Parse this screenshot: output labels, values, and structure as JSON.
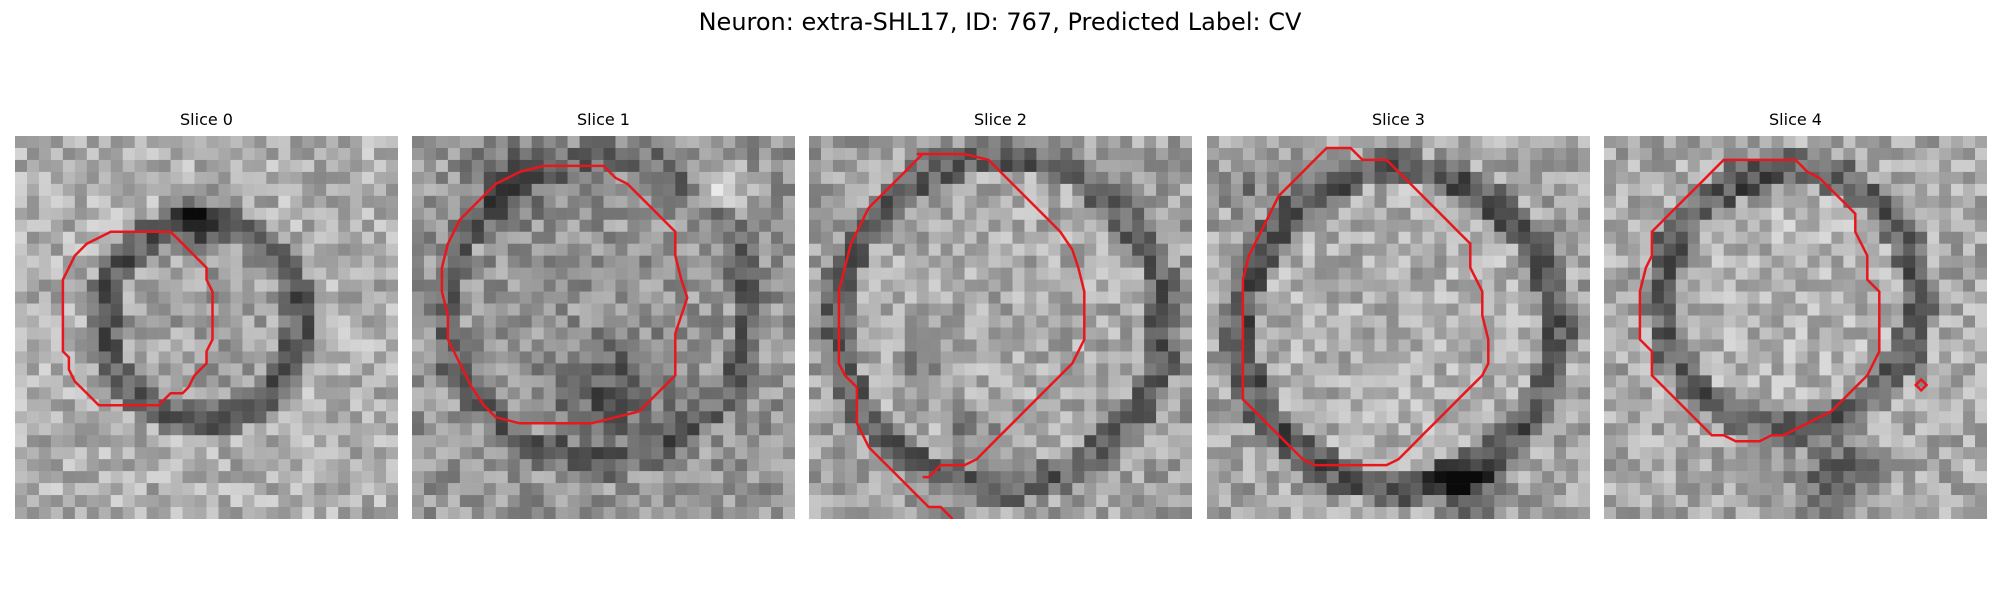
{
  "figure": {
    "title": "Neuron: extra-SHL17, ID: 767, Predicted Label: CV"
  },
  "panels": [
    {
      "title": "Slice 0"
    },
    {
      "title": "Slice 1"
    },
    {
      "title": "Slice 2"
    },
    {
      "title": "Slice 3"
    },
    {
      "title": "Slice 4"
    }
  ],
  "colors": {
    "contour": "#e8171d",
    "background": "#ffffff"
  }
}
